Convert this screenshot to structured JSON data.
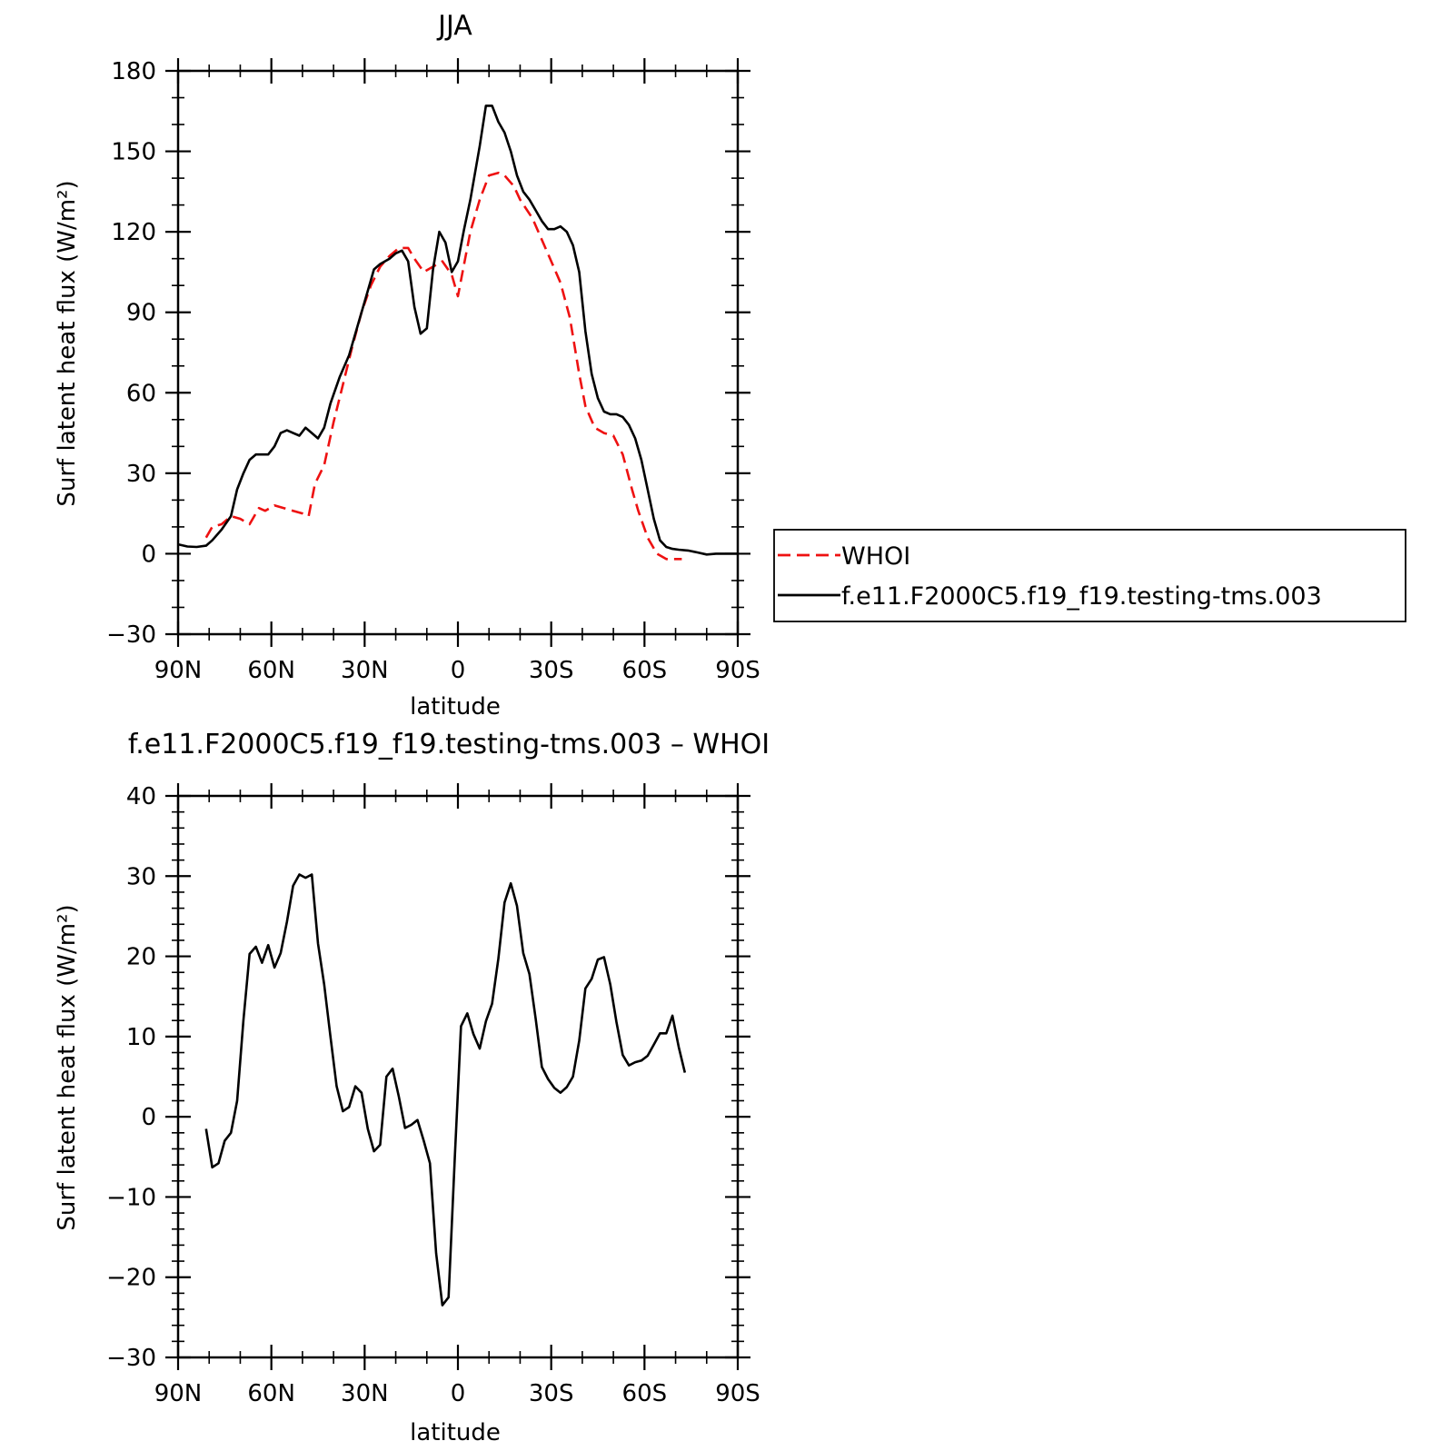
{
  "chart_data": [
    {
      "type": "line",
      "title": "JJA",
      "xlabel": "latitude",
      "ylabel": "Surf latent heat flux (W/m²)",
      "xlim": [
        90,
        -90
      ],
      "ylim": [
        -30,
        180
      ],
      "x_tick_values": [
        90,
        60,
        30,
        0,
        -30,
        -60,
        -90
      ],
      "x_tick_labels": [
        "90N",
        "60N",
        "30N",
        "0",
        "30S",
        "60S",
        "90S"
      ],
      "y_ticks": [
        -30,
        0,
        30,
        60,
        90,
        120,
        150,
        180
      ],
      "legend_position": "right",
      "series": [
        {
          "name": "WHOI",
          "color": "#ee1111",
          "dash": "dashed",
          "x": [
            81,
            79,
            76,
            73,
            70,
            67,
            64,
            62,
            59,
            56,
            53,
            50,
            48,
            46,
            43,
            40,
            37,
            34,
            31,
            28,
            25,
            22,
            19,
            16,
            14,
            11,
            8,
            5,
            2,
            0,
            -2,
            -4,
            -7,
            -10,
            -13,
            -15,
            -18,
            -20,
            -24,
            -27,
            -30,
            -33,
            -36,
            -39,
            -41,
            -44,
            -47,
            -50,
            -53,
            -56,
            -58,
            -61,
            -64,
            -67,
            -70,
            -72
          ],
          "y": [
            6,
            10,
            11,
            14,
            13,
            11,
            17,
            16,
            18,
            17,
            16,
            15,
            14,
            26,
            33,
            49,
            63,
            77,
            90,
            100,
            107,
            111,
            114,
            114,
            110,
            105,
            107,
            109,
            104,
            96,
            108,
            120,
            132,
            141,
            142,
            141,
            137,
            132,
            125,
            117,
            109,
            101,
            88,
            67,
            55,
            47,
            45,
            44,
            37,
            24,
            16,
            6,
            0,
            -2,
            -2,
            -2
          ]
        },
        {
          "name": "f.e11.F2000C5.f19_f19.testing-tms.003",
          "color": "#000000",
          "dash": "solid",
          "x": [
            90,
            87,
            84,
            81,
            79,
            76,
            73,
            71,
            69,
            67,
            65,
            63,
            61,
            59,
            57,
            55,
            53,
            51,
            49,
            47,
            45,
            43,
            41,
            38,
            35,
            32,
            29,
            27,
            25,
            22,
            20,
            18,
            16,
            14,
            12,
            10,
            8,
            6,
            4,
            2,
            0,
            -2,
            -4,
            -7,
            -9,
            -11,
            -13,
            -15,
            -17,
            -19,
            -21,
            -23,
            -25,
            -27,
            -29,
            -31,
            -33,
            -35,
            -37,
            -39,
            -41,
            -43,
            -45,
            -47,
            -49,
            -51,
            -53,
            -55,
            -57,
            -59,
            -61,
            -63,
            -65,
            -67,
            -69,
            -71,
            -74,
            -77,
            -80,
            -83,
            -86,
            -90
          ],
          "y": [
            3.5,
            2.7,
            2.5,
            3.0,
            5.0,
            9.0,
            14,
            24,
            30,
            35,
            37,
            37,
            37,
            40,
            45,
            46,
            45,
            44,
            47,
            45,
            43,
            47,
            56,
            66,
            74,
            86,
            98,
            106,
            108,
            110,
            112,
            113,
            109,
            92,
            82,
            84,
            106,
            120,
            116,
            105,
            109,
            121,
            132,
            152,
            167,
            167,
            161,
            157,
            150,
            141,
            135,
            132,
            128,
            124,
            121,
            121,
            122,
            120,
            115,
            105,
            83,
            67,
            58,
            53,
            52,
            52,
            51,
            48,
            43,
            35,
            24,
            13,
            5,
            2.5,
            1.8,
            1.5,
            1.2,
            0.5,
            -0.3,
            0,
            0,
            0
          ]
        }
      ]
    },
    {
      "type": "line",
      "title": "f.e11.F2000C5.f19_f19.testing-tms.003 – WHOI",
      "xlabel": "latitude",
      "ylabel": "Surf latent heat flux (W/m²)",
      "xlim": [
        90,
        -90
      ],
      "ylim": [
        -30,
        40
      ],
      "x_tick_values": [
        90,
        60,
        30,
        0,
        -30,
        -60,
        -90
      ],
      "x_tick_labels": [
        "90N",
        "60N",
        "30N",
        "0",
        "30S",
        "60S",
        "90S"
      ],
      "y_ticks": [
        -30,
        -20,
        -10,
        0,
        10,
        20,
        30,
        40
      ],
      "series": [
        {
          "color": "#000000",
          "dash": "solid",
          "x": [
            81,
            79,
            77,
            75,
            73,
            71,
            69,
            67,
            65,
            63,
            61,
            59,
            57,
            55,
            53,
            51,
            49,
            47,
            45,
            43,
            41,
            39,
            37,
            35,
            33,
            31,
            29,
            27,
            25,
            23,
            21,
            19,
            17,
            15,
            13,
            11,
            9,
            7,
            5,
            3,
            1,
            -1,
            -3,
            -5,
            -7,
            -9,
            -11,
            -13,
            -15,
            -17,
            -19,
            -21,
            -23,
            -25,
            -27,
            -29,
            -31,
            -33,
            -35,
            -37,
            -39,
            -41,
            -43,
            -45,
            -47,
            -49,
            -51,
            -53,
            -55,
            -57,
            -59,
            -61,
            -63,
            -65,
            -67,
            -69,
            -71,
            -73
          ],
          "y": [
            -1.5,
            -6.3,
            -5.8,
            -3.0,
            -2.0,
            2.0,
            12.0,
            20.3,
            21.2,
            19.2,
            21.4,
            18.6,
            20.4,
            24.3,
            28.8,
            30.2,
            29.8,
            30.2,
            21.6,
            16.5,
            10.0,
            3.8,
            0.7,
            1.2,
            3.8,
            3.0,
            -1.5,
            -4.3,
            -3.5,
            5.0,
            6.0,
            2.5,
            -1.4,
            -1.0,
            -0.4,
            -3.0,
            -5.8,
            -17.0,
            -23.5,
            -22.5,
            -5.0,
            11.3,
            12.9,
            10.3,
            8.5,
            11.9,
            14.1,
            19.7,
            26.7,
            29.1,
            26.3,
            20.4,
            17.8,
            12.2,
            6.2,
            4.7,
            3.6,
            3.0,
            3.7,
            5.0,
            9.5,
            16.0,
            17.2,
            19.6,
            19.9,
            16.5,
            11.8,
            7.7,
            6.4,
            6.8,
            7.0,
            7.6,
            9.0,
            10.4,
            10.4,
            12.6,
            8.7,
            5.5
          ]
        }
      ]
    }
  ]
}
